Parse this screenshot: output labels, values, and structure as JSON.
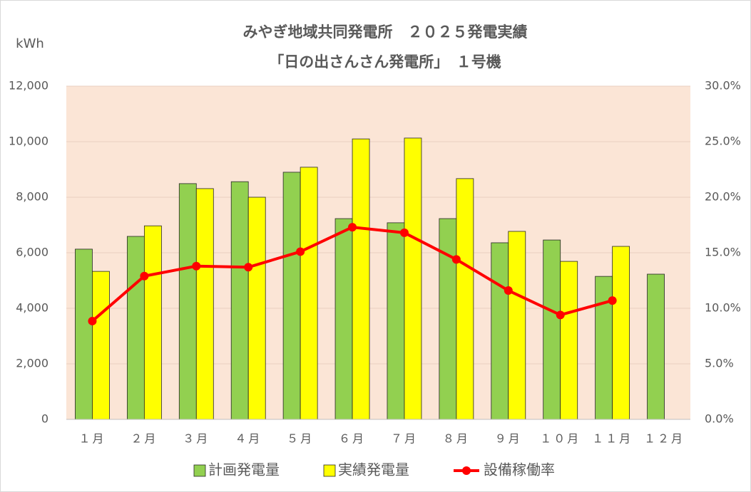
{
  "chart_data": {
    "type": "bar_line",
    "title": [
      "みやぎ地域共同発電所　２０２５発電実績",
      "「日の出さんさん発電所」　１号機"
    ],
    "y_label": "kWh",
    "categories": [
      "１月",
      "２月",
      "３月",
      "４月",
      "５月",
      "６月",
      "７月",
      "８月",
      "９月",
      "１０月",
      "１１月",
      "１２月"
    ],
    "series": [
      {
        "name": "計画発電量",
        "type": "bar",
        "color": "#92d050",
        "values": [
          6130,
          6590,
          8490,
          8560,
          8900,
          7230,
          7080,
          7230,
          6360,
          6460,
          5150,
          5230
        ]
      },
      {
        "name": "実績発電量",
        "type": "bar",
        "color": "#ffff00",
        "values": [
          5330,
          6970,
          8310,
          8000,
          9080,
          10100,
          10130,
          8670,
          6770,
          5690,
          6230,
          null
        ]
      },
      {
        "name": "設備稼働率",
        "type": "line",
        "axis": "y2",
        "color": "#ff0000",
        "values": [
          8.85,
          12.9,
          13.8,
          13.7,
          15.1,
          17.3,
          16.8,
          14.4,
          11.6,
          9.4,
          10.7,
          null
        ]
      }
    ],
    "ylim": [
      0,
      12000
    ],
    "yticks": [
      0,
      {
        "value": 2000,
        "label": "2,000"
      },
      {
        "value": 4000,
        "label": "4,000"
      },
      {
        "value": 6000,
        "label": "6,000"
      },
      {
        "value": 8000,
        "label": "8,000"
      },
      {
        "value": 10000,
        "label": "10,000"
      },
      {
        "value": 12000,
        "label": "12,000"
      }
    ],
    "y2lim": [
      0,
      30
    ],
    "y2ticks": [
      {
        "value": 0,
        "label": "0.0%"
      },
      {
        "value": 5,
        "label": "5.0%"
      },
      {
        "value": 10,
        "label": "10.0%"
      },
      {
        "value": 15,
        "label": "15.0%"
      },
      {
        "value": 20,
        "label": "20.0%"
      },
      {
        "value": 25,
        "label": "25.0%"
      },
      {
        "value": 30,
        "label": "30.0%"
      }
    ],
    "grid": true,
    "legend": "bottom",
    "plot_background": "#fbe5d6"
  }
}
